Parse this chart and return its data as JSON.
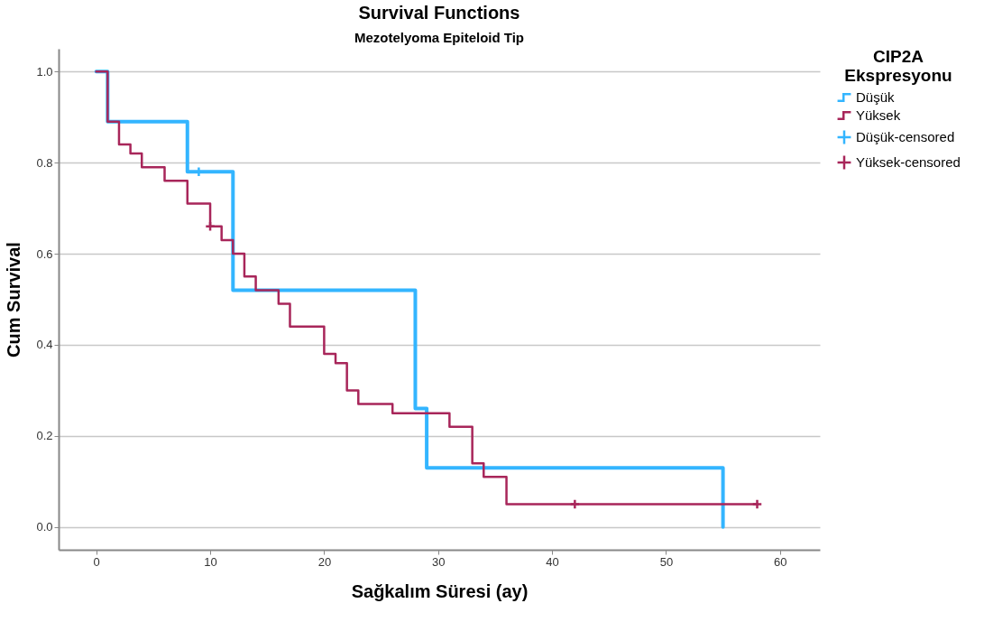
{
  "chart_data": {
    "type": "step",
    "title": "Survival Functions",
    "subtitle": "Mezotelyoma Epiteloid Tip",
    "xlabel": "Sağkalım Süresi (ay)",
    "ylabel": "Cum Survival",
    "legend_title": "CIP2A Ekspresyonu",
    "legend": "top right",
    "grid": "y",
    "line_style": "solid",
    "xlim": [
      -3.3,
      63.5
    ],
    "xticks": [
      0,
      10,
      20,
      30,
      40,
      50,
      60
    ],
    "ylim": [
      -0.05,
      1.05
    ],
    "yticks": [
      {
        "value": 0,
        "label": "0.0"
      },
      {
        "value": 0.2,
        "label": "0.2"
      },
      {
        "value": 0.4,
        "label": "0.4"
      },
      {
        "value": 0.6,
        "label": "0.6"
      },
      {
        "value": 0.8,
        "label": "0.8"
      },
      {
        "value": 1,
        "label": "1.0"
      }
    ],
    "series": [
      {
        "name": "Düşük",
        "color": "#33b5ff",
        "x": [
          0,
          1,
          8,
          12,
          28,
          29,
          55
        ],
        "values": [
          1,
          0.89,
          0.78,
          0.52,
          0.26,
          0.13,
          0
        ]
      },
      {
        "name": "Yüksek",
        "color": "#a8265a",
        "x": [
          0,
          1,
          2,
          3,
          4,
          6,
          8,
          10,
          11,
          12,
          13,
          14,
          16,
          17,
          20,
          21,
          22,
          23,
          26,
          31,
          33,
          34,
          36,
          58
        ],
        "values": [
          1,
          0.89,
          0.84,
          0.82,
          0.79,
          0.76,
          0.71,
          0.66,
          0.63,
          0.6,
          0.55,
          0.52,
          0.49,
          0.44,
          0.38,
          0.36,
          0.3,
          0.27,
          0.25,
          0.22,
          0.14,
          0.11,
          0.05,
          0.05
        ]
      },
      {
        "name": "Düşük-censored",
        "type": "scatter",
        "marker": "cross",
        "color": "#33b5ff",
        "x": [
          9
        ],
        "values": [
          0.78
        ]
      },
      {
        "name": "Yüksek-censored",
        "type": "scatter",
        "marker": "cross",
        "color": "#a8265a",
        "x": [
          10,
          42,
          58
        ],
        "values": [
          0.66,
          0.05,
          0.05
        ]
      }
    ]
  }
}
